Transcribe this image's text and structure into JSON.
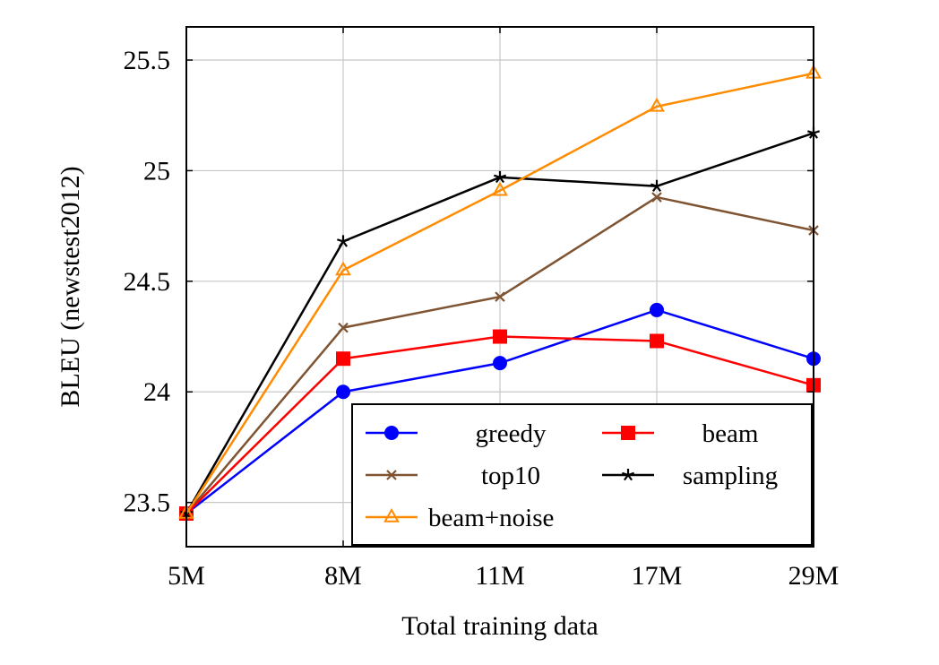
{
  "chart_data": {
    "type": "line",
    "xlabel": "Total training data",
    "ylabel": "BLEU (newstest2012)",
    "categories": [
      "5M",
      "8M",
      "11M",
      "17M",
      "29M"
    ],
    "yticks": [
      "23.5",
      "24",
      "24.5",
      "25",
      "25.5"
    ],
    "ylim": [
      23.3,
      25.65
    ],
    "grid": true,
    "legend_position": "bottom-right",
    "series": [
      {
        "name": "greedy",
        "color": "#0000ff",
        "marker": "circle",
        "values": [
          23.45,
          24.0,
          24.13,
          24.37,
          24.15
        ]
      },
      {
        "name": "beam",
        "color": "#ff0000",
        "marker": "square",
        "values": [
          23.45,
          24.15,
          24.25,
          24.23,
          24.03
        ]
      },
      {
        "name": "top10",
        "color": "#7f5432",
        "marker": "x",
        "values": [
          23.45,
          24.29,
          24.43,
          24.88,
          24.73
        ]
      },
      {
        "name": "sampling",
        "color": "#000000",
        "marker": "star",
        "values": [
          23.45,
          24.68,
          24.97,
          24.93,
          25.17
        ]
      },
      {
        "name": "beam+noise",
        "color": "#ff8c00",
        "marker": "triangle",
        "values": [
          23.45,
          24.55,
          24.91,
          25.29,
          25.44
        ]
      }
    ]
  }
}
